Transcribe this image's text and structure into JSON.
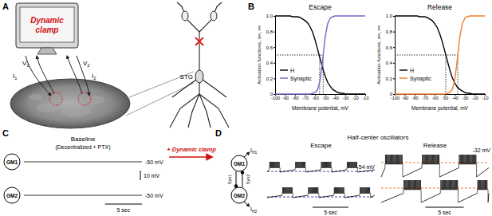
{
  "chart_data": [
    {
      "type": "line",
      "title": "Escape",
      "x": [
        -100,
        -97.5,
        -95,
        -92.5,
        -90,
        -87.5,
        -85,
        -82.5,
        -80,
        -77.5,
        -75,
        -72.5,
        -70,
        -67.5,
        -65,
        -62.5,
        -60,
        -57.5,
        -55,
        -52.5,
        -50,
        -47.5,
        -45,
        -42.5,
        -40,
        -37.5,
        -35,
        -32.5,
        -30,
        -27.5,
        -25,
        -22.5,
        -20,
        -17.5,
        -15,
        -12.5,
        -10
      ],
      "series": [
        {
          "name": "H",
          "color": "#000000",
          "values": [
            1,
            1,
            1,
            1,
            1,
            1,
            1,
            0.99,
            0.99,
            0.99,
            0.98,
            0.96,
            0.94,
            0.91,
            0.86,
            0.79,
            0.69,
            0.57,
            0.45,
            0.33,
            0.23,
            0.15,
            0.1,
            0.06,
            0.04,
            0.02,
            0.01,
            0.01,
            0,
            0,
            0,
            0,
            0,
            0,
            0,
            0,
            0
          ]
        },
        {
          "name": "Synaptic",
          "color": "#7e63c9",
          "values": [
            0,
            0,
            0,
            0,
            0,
            0,
            0,
            0,
            0,
            0,
            0,
            0,
            0,
            0,
            0,
            0.01,
            0.02,
            0.06,
            0.18,
            0.44,
            0.73,
            0.9,
            0.97,
            0.99,
            1,
            1,
            1,
            1,
            1,
            1,
            1,
            1,
            1,
            1,
            1,
            1,
            1
          ]
        }
      ],
      "xlim": [
        -100,
        -10
      ],
      "ylim": [
        0,
        1
      ],
      "xticks": [
        -100,
        -90,
        -80,
        -70,
        -60,
        -50,
        -40,
        -30,
        -20,
        -10
      ],
      "yticks": [
        0,
        0.2,
        0.4,
        0.6,
        0.8,
        {
          "value": 1,
          "label": "1.0"
        }
      ],
      "xlabel": "Membrane potential, mV",
      "ylabel": "Activation functions, s∞, r∞",
      "legend": "lower left",
      "dotted_lines": {
        "y": 0.5,
        "x": [
          -55.5,
          -52
        ]
      }
    },
    {
      "type": "line",
      "title": "Release",
      "x": [
        -100,
        -97.5,
        -95,
        -92.5,
        -90,
        -87.5,
        -85,
        -82.5,
        -80,
        -77.5,
        -75,
        -72.5,
        -70,
        -67.5,
        -65,
        -62.5,
        -60,
        -57.5,
        -55,
        -52.5,
        -50,
        -47.5,
        -45,
        -42.5,
        -40,
        -37.5,
        -35,
        -32.5,
        -30,
        -27.5,
        -25,
        -22.5,
        -20,
        -17.5,
        -15,
        -12.5,
        -10
      ],
      "series": [
        {
          "name": "H",
          "color": "#000000",
          "values": [
            1,
            1,
            1,
            1,
            1,
            1,
            1,
            1,
            1,
            1,
            0.99,
            0.99,
            0.99,
            0.98,
            0.96,
            0.94,
            0.9,
            0.85,
            0.77,
            0.67,
            0.55,
            0.43,
            0.31,
            0.21,
            0.14,
            0.09,
            0.06,
            0.04,
            0.02,
            0.01,
            0.01,
            0,
            0,
            0,
            0,
            0,
            0
          ]
        },
        {
          "name": "Synaptic",
          "color": "#f07d2a",
          "values": [
            0,
            0,
            0,
            0,
            0,
            0,
            0,
            0,
            0,
            0,
            0,
            0,
            0,
            0,
            0,
            0,
            0,
            0,
            0,
            0,
            0,
            0.01,
            0.02,
            0.06,
            0.18,
            0.44,
            0.73,
            0.9,
            0.97,
            0.99,
            1,
            1,
            1,
            1,
            1,
            1,
            1
          ]
        }
      ],
      "xlim": [
        -100,
        -10
      ],
      "ylim": [
        0,
        1
      ],
      "xticks": [
        -100,
        -90,
        -80,
        -70,
        -60,
        -50,
        -40,
        -30,
        -20,
        -10
      ],
      "yticks": [
        0,
        0.2,
        0.4,
        0.6,
        0.8,
        {
          "value": 1,
          "label": "1.0"
        }
      ],
      "xlabel": "Membrane potential, mV",
      "ylabel": "Activation functions, s∞, r∞",
      "legend": "lower left",
      "dotted_lines": {
        "y": 0.5,
        "x": [
          -49,
          -37
        ]
      }
    }
  ],
  "panels": {
    "A": {
      "label": "A",
      "monitor_text": [
        "Dynamic",
        "clamp"
      ],
      "leads": [
        "V1",
        "I1",
        "V2",
        "I2"
      ],
      "nerve_label": "STG"
    },
    "B": {
      "label": "B"
    },
    "C": {
      "label": "C",
      "title": [
        "Baseline",
        "(Decentralized + PTX)"
      ],
      "cells": [
        "GM1",
        "GM2"
      ],
      "levels": [
        {
          "value": -50,
          "label": "-50 mV"
        },
        {
          "value": -50,
          "label": "-50 mV"
        }
      ],
      "duration": 16,
      "scale_bars": {
        "voltage": {
          "value": 10,
          "label": "10 mV"
        },
        "time": {
          "value": 5,
          "label": "5 sec"
        }
      },
      "arrow_text": "+ Dynamic clamp"
    },
    "D": {
      "label": "D",
      "title": "Half-center oscillators",
      "cells": [
        "GM1",
        "GM2"
      ],
      "currents": [
        "IH1",
        "IH2"
      ],
      "synapses": [
        "Syn1",
        "Syn2"
      ],
      "conditions": [
        {
          "name": "Escape",
          "color": "#4b44b8",
          "level": {
            "value": -54,
            "label": "-54 mV"
          },
          "window": [
            0,
            15
          ],
          "time_bar": {
            "value": 5,
            "label": "5 sec"
          },
          "traces": [
            {
              "bursts": [
                [
                  0.3,
                  1.8
                ],
                [
                  3.9,
                  5.4
                ],
                [
                  7.5,
                  9.0
                ],
                [
                  11.1,
                  12.6
                ]
              ],
              "trough": -56,
              "interburst_end": -50,
              "plateau": -45,
              "spike_peak": -30
            },
            {
              "bursts": [
                [
                  2.1,
                  3.6
                ],
                [
                  5.7,
                  7.2
                ],
                [
                  9.3,
                  10.8
                ],
                [
                  12.9,
                  14.4
                ]
              ],
              "trough": -56,
              "interburst_end": -50,
              "plateau": -45,
              "spike_peak": -30
            }
          ]
        },
        {
          "name": "Release",
          "color": "#f07d2a",
          "level": {
            "value": -32,
            "label": "-32 mV"
          },
          "window": [
            0,
            14
          ],
          "time_bar": {
            "value": 5,
            "label": "5 sec"
          },
          "traces": [
            {
              "bursts": [
                [
                  0.5,
                  2.8
                ],
                [
                  5.3,
                  7.6
                ],
                [
                  10.1,
                  12.4
                ]
              ],
              "trough": -68,
              "interburst_end": -45,
              "plateau": -36,
              "spike_peak": -12
            },
            {
              "bursts": [
                [
                  2.9,
                  5.2
                ],
                [
                  7.7,
                  10.0
                ],
                [
                  12.5,
                  13.9
                ]
              ],
              "trough": -68,
              "interburst_end": -45,
              "plateau": -36,
              "spike_peak": -12
            }
          ]
        }
      ]
    }
  }
}
